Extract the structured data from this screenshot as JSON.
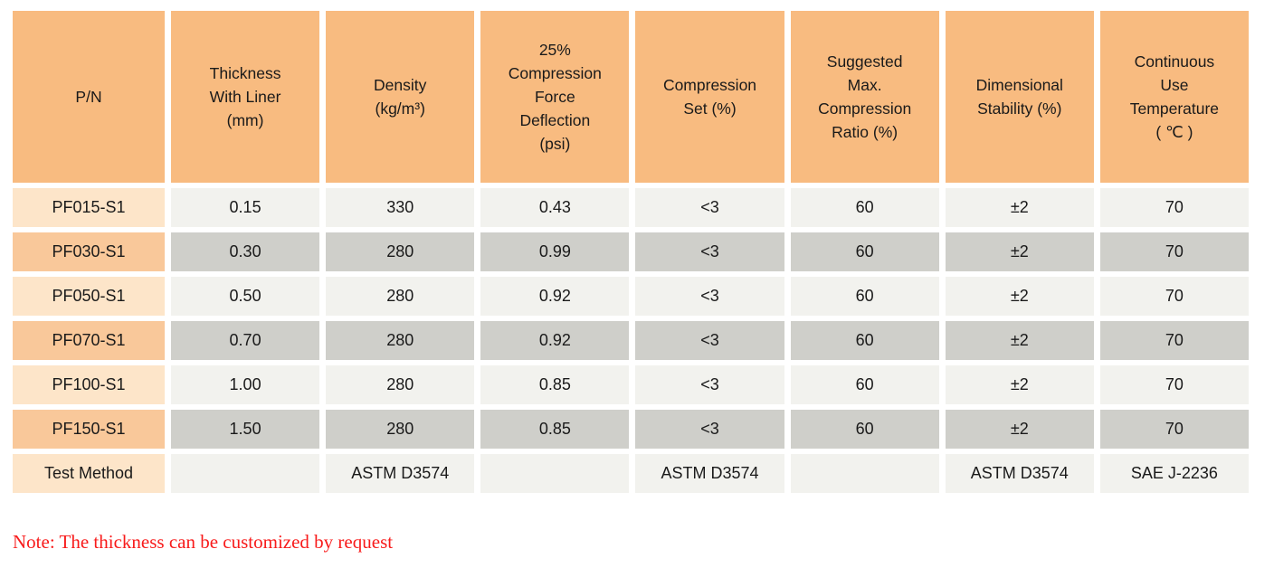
{
  "colors": {
    "header-orange": "#f8bb80",
    "pn-odd": "#fde5c9",
    "pn-even": "#f9c89a",
    "cell-odd": "#f2f2ee",
    "cell-even": "#cfcfca",
    "text": "#1a1a1a",
    "note-red": "#f81b1b",
    "page-bg": "#ffffff"
  },
  "table": {
    "headers": [
      "P/N",
      "Thickness\nWith Liner\n(mm)",
      "Density\n(kg/m³)",
      "25%\nCompression\nForce\nDeflection\n(psi)",
      "Compression\nSet (%)",
      "Suggested\nMax.\nCompression\nRatio (%)",
      "Dimensional\nStability (%)",
      "Continuous\nUse\nTemperature\n( ℃ )"
    ],
    "rows": [
      {
        "pn": "PF015-S1",
        "values": [
          "0.15",
          "330",
          "0.43",
          "<3",
          "60",
          "±2",
          "70"
        ]
      },
      {
        "pn": "PF030-S1",
        "values": [
          "0.30",
          "280",
          "0.99",
          "<3",
          "60",
          "±2",
          "70"
        ]
      },
      {
        "pn": "PF050-S1",
        "values": [
          "0.50",
          "280",
          "0.92",
          "<3",
          "60",
          "±2",
          "70"
        ]
      },
      {
        "pn": "PF070-S1",
        "values": [
          "0.70",
          "280",
          "0.92",
          "<3",
          "60",
          "±2",
          "70"
        ]
      },
      {
        "pn": "PF100-S1",
        "values": [
          "1.00",
          "280",
          "0.85",
          "<3",
          "60",
          "±2",
          "70"
        ]
      },
      {
        "pn": "PF150-S1",
        "values": [
          "1.50",
          "280",
          "0.85",
          "<3",
          "60",
          "±2",
          "70"
        ]
      },
      {
        "pn": "Test Method",
        "values": [
          "",
          "ASTM D3574",
          "",
          "ASTM D3574",
          "",
          "ASTM D3574",
          "SAE J-2236"
        ]
      }
    ]
  },
  "note": "Note: The thickness can be customized by request"
}
